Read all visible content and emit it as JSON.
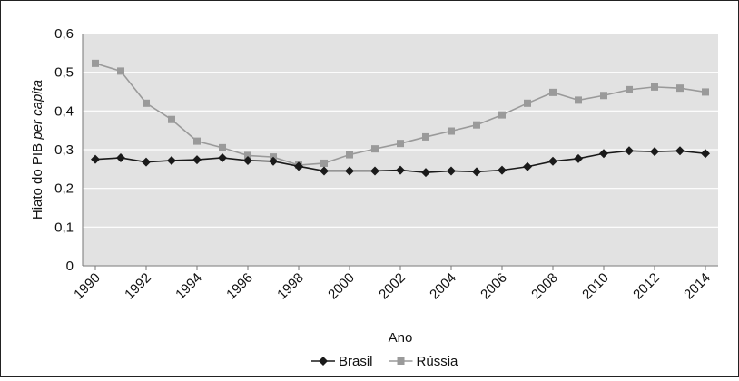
{
  "chart_data": {
    "type": "line",
    "xlabel": "Ano",
    "ylabel_main": "Hiato do PIB ",
    "ylabel_italic": "per capita",
    "ylim": [
      0,
      0.6
    ],
    "yticks": [
      0,
      0.1,
      0.2,
      0.3,
      0.4,
      0.5,
      0.6
    ],
    "ytick_labels": [
      "0",
      "0,1",
      "0,2",
      "0,3",
      "0,4",
      "0,5",
      "0,6"
    ],
    "xtick_labels": [
      "1990",
      "1992",
      "1994",
      "1996",
      "1998",
      "2000",
      "2002",
      "2004",
      "2006",
      "2008",
      "2010",
      "2012",
      "2014"
    ],
    "x": [
      1990,
      1991,
      1992,
      1993,
      1994,
      1995,
      1996,
      1997,
      1998,
      1999,
      2000,
      2001,
      2002,
      2003,
      2004,
      2005,
      2006,
      2007,
      2008,
      2009,
      2010,
      2011,
      2012,
      2013,
      2014
    ],
    "grid": true,
    "legend_position": "bottom",
    "series": [
      {
        "name": "Brasil",
        "color": "#1a1a1a",
        "marker": "diamond",
        "values": [
          0.275,
          0.279,
          0.268,
          0.272,
          0.274,
          0.279,
          0.272,
          0.27,
          0.257,
          0.245,
          0.245,
          0.245,
          0.247,
          0.241,
          0.245,
          0.243,
          0.247,
          0.256,
          0.27,
          0.277,
          0.29,
          0.297,
          0.295,
          0.297,
          0.29
        ]
      },
      {
        "name": "Rússia",
        "color": "#9a9a9a",
        "marker": "square",
        "values": [
          0.523,
          0.503,
          0.42,
          0.378,
          0.322,
          0.305,
          0.285,
          0.281,
          0.26,
          0.265,
          0.287,
          0.302,
          0.316,
          0.333,
          0.348,
          0.364,
          0.39,
          0.42,
          0.448,
          0.428,
          0.44,
          0.455,
          0.462,
          0.459,
          0.449
        ]
      }
    ]
  }
}
